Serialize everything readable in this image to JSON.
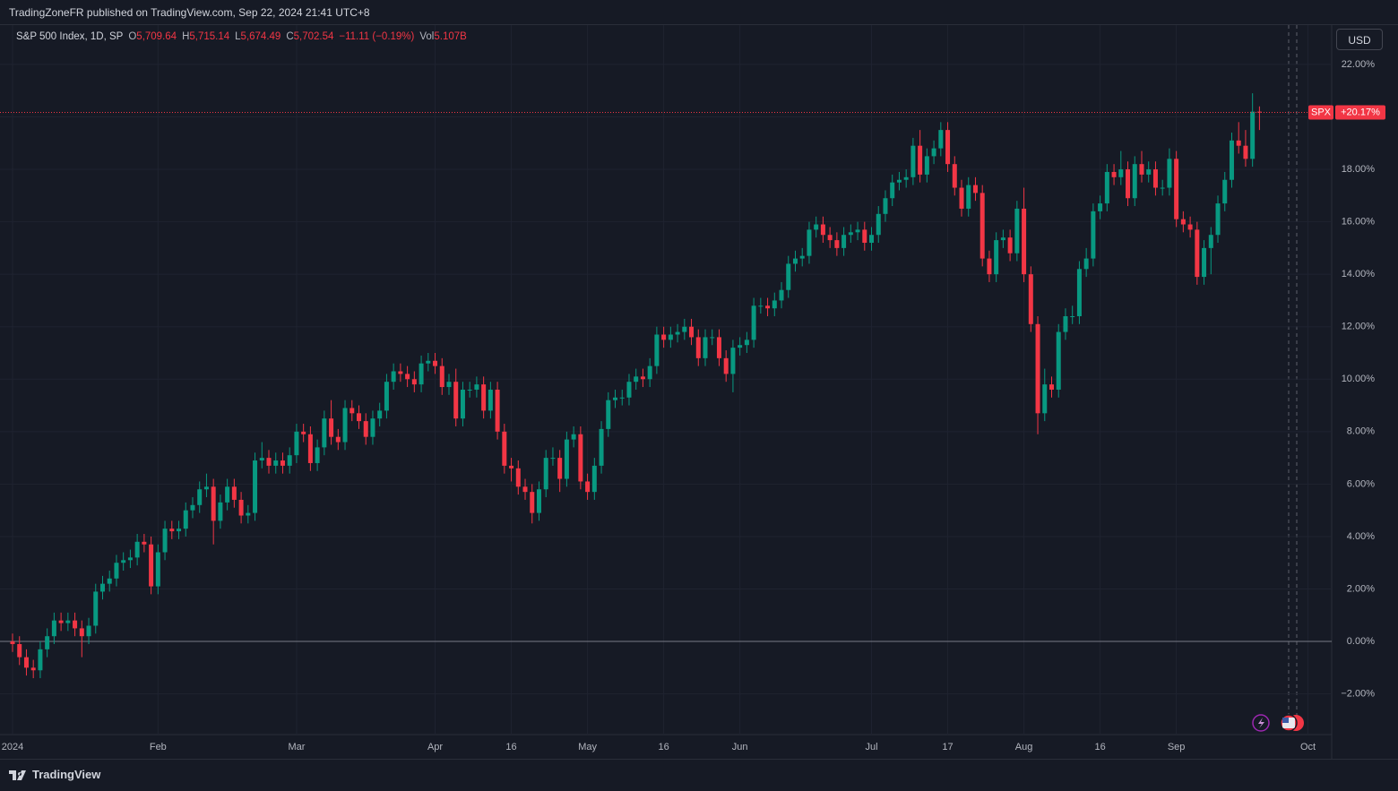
{
  "header": {
    "text": "TradingZoneFR published on TradingView.com, Sep 22, 2024 21:41 UTC+8"
  },
  "legend": {
    "symbol": "S&P 500 Index, 1D, SP",
    "o_key": "O",
    "o": "5,709.64",
    "h_key": "H",
    "h": "5,715.14",
    "l_key": "L",
    "l": "5,674.49",
    "c_key": "C",
    "c": "5,702.54",
    "change": "−11.11 (−0.19%)",
    "vol_key": "Vol",
    "vol": "5.107B"
  },
  "currency": "USD",
  "footer": "TradingView",
  "chart_data": {
    "type": "candlestick",
    "up_color": "#089981",
    "down_color": "#f23645",
    "grid": true,
    "symbol": "SPX",
    "last_price": {
      "value": 20.17,
      "label": "+20.17%"
    },
    "ylim": [
      -3.55,
      23.5
    ],
    "yticks": [
      {
        "value": -2,
        "label": "−2.00%"
      },
      {
        "value": 0,
        "label": "0.00%"
      },
      {
        "value": 2,
        "label": "2.00%"
      },
      {
        "value": 4,
        "label": "4.00%"
      },
      {
        "value": 6,
        "label": "6.00%"
      },
      {
        "value": 8,
        "label": "8.00%"
      },
      {
        "value": 10,
        "label": "10.00%"
      },
      {
        "value": 12,
        "label": "12.00%"
      },
      {
        "value": 14,
        "label": "14.00%"
      },
      {
        "value": 16,
        "label": "16.00%"
      },
      {
        "value": 18,
        "label": "18.00%"
      },
      {
        "value": 20,
        "label": "20.00%"
      },
      {
        "value": 22,
        "label": "22.00%"
      }
    ],
    "categories": [
      "2024",
      null,
      null,
      null,
      null,
      null,
      null,
      null,
      null,
      null,
      null,
      null,
      null,
      null,
      null,
      null,
      null,
      null,
      null,
      null,
      null,
      "Feb",
      null,
      null,
      null,
      null,
      null,
      null,
      null,
      null,
      null,
      null,
      null,
      null,
      null,
      null,
      null,
      null,
      null,
      null,
      null,
      "Mar",
      null,
      null,
      null,
      null,
      null,
      null,
      null,
      null,
      null,
      null,
      null,
      null,
      null,
      null,
      null,
      null,
      null,
      null,
      null,
      "Apr",
      null,
      null,
      null,
      null,
      null,
      null,
      null,
      null,
      null,
      null,
      "16",
      null,
      null,
      null,
      null,
      null,
      null,
      null,
      null,
      null,
      null,
      "May",
      null,
      null,
      null,
      null,
      null,
      null,
      null,
      null,
      null,
      null,
      "16",
      null,
      null,
      null,
      null,
      null,
      null,
      null,
      null,
      null,
      null,
      "Jun",
      null,
      null,
      null,
      null,
      null,
      null,
      null,
      null,
      null,
      null,
      null,
      null,
      null,
      null,
      null,
      null,
      null,
      null,
      "Jul",
      null,
      null,
      null,
      null,
      null,
      null,
      null,
      null,
      null,
      null,
      "17",
      null,
      null,
      null,
      null,
      null,
      null,
      null,
      null,
      null,
      null,
      "Aug",
      null,
      null,
      null,
      null,
      null,
      null,
      null,
      null,
      null,
      null,
      "16",
      null,
      null,
      null,
      null,
      null,
      null,
      null,
      null,
      null,
      null,
      "Sep",
      null,
      null,
      null,
      null,
      null,
      null,
      null,
      null,
      null,
      null,
      null,
      null,
      null,
      null,
      null,
      null,
      null,
      null,
      "Oct"
    ],
    "open": [
      0.0,
      -0.1,
      -0.6,
      -1.0,
      -1.1,
      -0.3,
      0.2,
      0.8,
      0.7,
      0.8,
      0.5,
      0.2,
      0.6,
      1.9,
      2.2,
      2.4,
      3.0,
      3.1,
      3.2,
      3.8,
      3.7,
      2.1,
      3.4,
      4.3,
      4.2,
      4.3,
      5.0,
      5.2,
      5.8,
      5.9,
      4.6,
      5.3,
      5.9,
      5.4,
      4.8,
      4.9,
      6.9,
      7.0,
      6.7,
      6.9,
      6.7,
      7.1,
      8.0,
      7.9,
      6.8,
      7.4,
      8.5,
      7.8,
      7.6,
      8.9,
      8.7,
      8.4,
      7.8,
      8.5,
      8.8,
      9.9,
      10.3,
      10.2,
      10.0,
      9.8,
      10.6,
      10.7,
      10.5,
      9.7,
      9.9,
      8.5,
      9.6,
      9.6,
      9.8,
      8.8,
      9.6,
      8.0,
      6.7,
      6.6,
      5.9,
      5.7,
      4.9,
      5.8,
      7.0,
      7.0,
      6.2,
      7.7,
      7.9,
      6.1,
      5.7,
      6.7,
      8.1,
      9.2,
      9.3,
      9.3,
      9.9,
      10.1,
      10.0,
      10.5,
      11.7,
      11.5,
      11.7,
      11.8,
      12.0,
      11.6,
      10.8,
      11.6,
      11.6,
      10.8,
      10.2,
      11.2,
      11.3,
      11.5,
      12.8,
      12.8,
      12.7,
      13.0,
      13.4,
      14.4,
      14.6,
      14.7,
      15.7,
      15.9,
      15.5,
      15.3,
      15.0,
      15.5,
      15.6,
      15.7,
      15.2,
      15.5,
      16.3,
      16.9,
      17.5,
      17.6,
      17.7,
      18.9,
      17.8,
      18.5,
      18.8,
      19.5,
      18.2,
      17.3,
      16.5,
      17.4,
      17.1,
      14.6,
      14.0,
      15.3,
      15.4,
      14.8,
      16.5,
      14.0,
      12.1,
      8.7,
      9.8,
      9.6,
      11.8,
      12.4,
      12.4,
      14.2,
      14.6,
      16.4,
      16.7,
      17.9,
      17.7,
      18.0,
      16.9,
      18.2,
      17.8,
      18.0,
      17.3,
      17.3,
      18.4,
      16.1,
      15.9,
      15.7,
      13.9,
      15.0,
      15.5,
      16.7,
      17.6,
      19.1,
      18.9,
      18.4,
      20.2,
      null,
      null,
      null,
      null,
      null,
      null,
      null
    ],
    "high": [
      0.3,
      0.2,
      -0.3,
      -0.7,
      0.0,
      0.5,
      1.1,
      1.1,
      1.1,
      1.1,
      0.8,
      0.9,
      2.2,
      2.5,
      2.7,
      3.3,
      3.4,
      3.5,
      4.1,
      4.1,
      4.0,
      3.7,
      4.6,
      4.6,
      4.6,
      5.3,
      5.5,
      6.1,
      6.4,
      6.2,
      5.6,
      6.2,
      6.2,
      5.7,
      5.2,
      7.2,
      7.6,
      7.3,
      7.2,
      7.2,
      7.4,
      8.3,
      8.3,
      8.2,
      7.7,
      8.8,
      9.2,
      8.1,
      9.2,
      9.2,
      9.0,
      8.7,
      8.8,
      9.1,
      10.2,
      10.6,
      10.6,
      10.5,
      10.3,
      10.9,
      11.0,
      11.0,
      10.8,
      10.2,
      10.4,
      9.9,
      9.9,
      10.1,
      10.1,
      9.9,
      9.9,
      8.3,
      7.0,
      6.9,
      6.2,
      6.0,
      6.1,
      7.3,
      7.4,
      7.3,
      8.0,
      8.2,
      8.2,
      6.4,
      7.0,
      8.4,
      9.5,
      9.6,
      9.6,
      10.2,
      10.4,
      10.4,
      10.8,
      12.0,
      12.0,
      12.0,
      12.1,
      12.3,
      12.3,
      11.9,
      11.9,
      11.9,
      11.9,
      11.1,
      11.5,
      11.6,
      11.8,
      13.1,
      13.1,
      13.1,
      13.3,
      13.7,
      14.7,
      14.9,
      15.0,
      16.0,
      16.2,
      16.2,
      15.8,
      15.6,
      15.8,
      15.9,
      16.0,
      16.0,
      15.8,
      16.6,
      17.2,
      17.8,
      17.9,
      18.0,
      19.2,
      19.5,
      18.8,
      19.1,
      19.8,
      19.8,
      18.5,
      17.6,
      17.7,
      17.7,
      17.4,
      14.9,
      15.6,
      15.7,
      15.7,
      16.8,
      17.3,
      14.3,
      12.4,
      10.4,
      10.1,
      12.1,
      12.7,
      12.8,
      14.5,
      15.0,
      16.7,
      17.0,
      18.2,
      18.2,
      18.7,
      18.3,
      18.5,
      18.7,
      18.3,
      18.3,
      17.6,
      18.8,
      18.7,
      16.4,
      16.2,
      16.0,
      15.3,
      15.8,
      17.0,
      17.9,
      19.4,
      19.8,
      19.5,
      20.9,
      20.4,
      null,
      null,
      null,
      null,
      null,
      null,
      null
    ],
    "low": [
      -0.4,
      -0.9,
      -1.3,
      -1.4,
      -1.4,
      -0.6,
      -0.1,
      0.4,
      0.4,
      0.2,
      -0.6,
      -0.1,
      0.3,
      1.6,
      1.9,
      2.1,
      2.7,
      2.8,
      2.9,
      3.4,
      1.8,
      1.8,
      3.1,
      3.9,
      3.9,
      4.0,
      4.7,
      4.9,
      5.5,
      3.7,
      4.3,
      5.0,
      5.1,
      4.5,
      4.5,
      4.6,
      6.6,
      6.4,
      6.4,
      6.4,
      6.4,
      6.8,
      7.6,
      6.5,
      6.5,
      7.1,
      7.5,
      7.3,
      7.3,
      8.4,
      8.1,
      7.5,
      7.5,
      8.2,
      8.5,
      9.6,
      9.9,
      9.7,
      9.5,
      9.5,
      10.3,
      10.2,
      9.4,
      9.4,
      8.2,
      8.2,
      9.3,
      9.3,
      8.5,
      8.5,
      7.7,
      6.4,
      6.1,
      5.6,
      5.4,
      4.5,
      4.6,
      5.5,
      6.7,
      5.7,
      5.9,
      7.4,
      5.8,
      5.4,
      5.4,
      6.4,
      7.8,
      8.9,
      9.0,
      9.0,
      9.6,
      9.7,
      9.7,
      10.2,
      11.2,
      11.2,
      11.4,
      11.5,
      11.3,
      10.5,
      10.5,
      11.3,
      10.5,
      9.9,
      9.5,
      10.9,
      11.0,
      11.2,
      12.5,
      12.4,
      12.4,
      12.7,
      13.1,
      14.1,
      14.3,
      14.4,
      15.4,
      15.2,
      15.0,
      14.7,
      14.7,
      15.2,
      15.3,
      14.9,
      14.9,
      15.2,
      16.0,
      16.6,
      17.2,
      17.3,
      17.4,
      17.5,
      17.5,
      18.2,
      18.5,
      17.9,
      17.0,
      16.2,
      16.2,
      16.8,
      14.3,
      13.7,
      13.7,
      15.0,
      14.5,
      14.5,
      13.7,
      11.8,
      7.9,
      8.4,
      9.3,
      9.3,
      11.5,
      12.1,
      12.1,
      13.9,
      14.3,
      16.1,
      16.4,
      17.4,
      17.4,
      16.6,
      16.6,
      17.5,
      17.5,
      17.0,
      17.0,
      17.0,
      15.8,
      15.6,
      15.4,
      13.6,
      13.6,
      14.0,
      15.2,
      16.4,
      17.3,
      18.6,
      18.1,
      18.1,
      19.5,
      null,
      null,
      null,
      null,
      null,
      null,
      null
    ],
    "close": [
      -0.1,
      -0.6,
      -1.0,
      -1.1,
      -0.3,
      0.2,
      0.8,
      0.7,
      0.8,
      0.5,
      0.2,
      0.6,
      1.9,
      2.2,
      2.4,
      3.0,
      3.1,
      3.2,
      3.8,
      3.7,
      2.1,
      3.4,
      4.3,
      4.2,
      4.3,
      5.0,
      5.2,
      5.8,
      5.9,
      4.6,
      5.3,
      5.9,
      5.4,
      4.8,
      4.9,
      6.9,
      7.0,
      6.7,
      6.9,
      6.7,
      7.1,
      8.0,
      7.9,
      6.8,
      7.4,
      8.5,
      7.8,
      7.6,
      8.9,
      8.7,
      8.4,
      7.8,
      8.5,
      8.8,
      9.9,
      10.3,
      10.2,
      10.0,
      9.8,
      10.6,
      10.7,
      10.5,
      9.7,
      9.9,
      8.5,
      9.6,
      9.6,
      9.8,
      8.8,
      9.6,
      8.0,
      6.7,
      6.6,
      5.9,
      5.7,
      4.9,
      5.8,
      7.0,
      7.0,
      6.2,
      7.7,
      7.9,
      6.1,
      5.7,
      6.7,
      8.1,
      9.2,
      9.3,
      9.3,
      9.9,
      10.1,
      10.0,
      10.5,
      11.7,
      11.5,
      11.7,
      11.8,
      12.0,
      11.6,
      10.8,
      11.6,
      11.6,
      10.8,
      10.2,
      11.2,
      11.3,
      11.5,
      12.8,
      12.8,
      12.7,
      13.0,
      13.4,
      14.4,
      14.6,
      14.7,
      15.7,
      15.9,
      15.5,
      15.3,
      15.0,
      15.5,
      15.6,
      15.7,
      15.2,
      15.5,
      16.3,
      16.9,
      17.5,
      17.6,
      17.7,
      18.9,
      17.8,
      18.5,
      18.8,
      19.5,
      18.2,
      17.3,
      16.5,
      17.4,
      17.1,
      14.6,
      14.0,
      15.3,
      15.4,
      14.8,
      16.5,
      14.0,
      12.1,
      8.7,
      9.8,
      9.6,
      11.8,
      12.4,
      12.4,
      14.2,
      14.6,
      16.4,
      16.7,
      17.9,
      17.7,
      18.0,
      16.9,
      18.2,
      17.8,
      18.0,
      17.3,
      17.3,
      18.4,
      16.1,
      15.9,
      15.7,
      13.9,
      15.0,
      15.5,
      16.7,
      17.6,
      19.1,
      18.9,
      18.4,
      20.2,
      20.17,
      null,
      null,
      null,
      null,
      null,
      null,
      null
    ]
  }
}
